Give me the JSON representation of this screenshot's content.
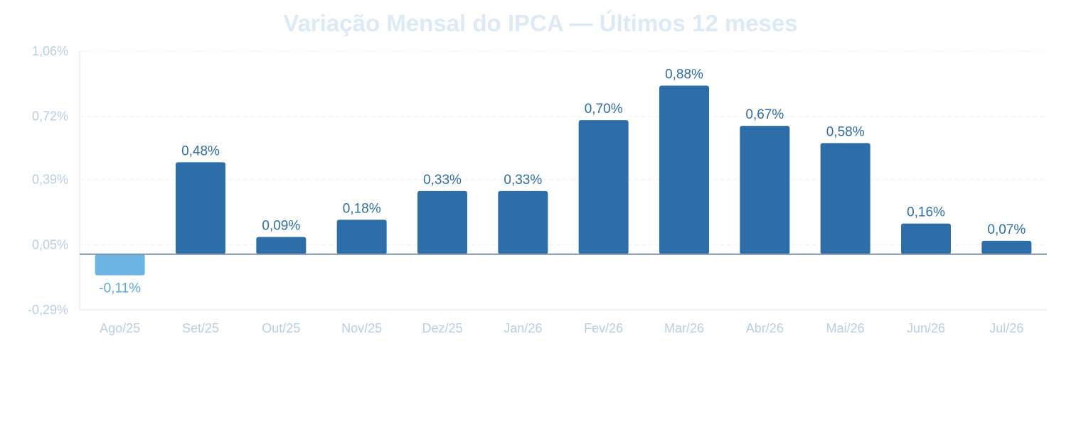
{
  "chart_data": {
    "type": "bar",
    "title": "Variação Mensal do IPCA — Últimos 12 meses",
    "xlabel": "",
    "ylabel": "",
    "categories": [
      "Ago/25",
      "Set/25",
      "Out/25",
      "Nov/25",
      "Dez/25",
      "Jan/26",
      "Fev/26",
      "Mar/26",
      "Abr/26",
      "Mai/26",
      "Jun/26",
      "Jul/26"
    ],
    "series": [
      {
        "values": [
          -0.11,
          0.48,
          0.09,
          0.18,
          0.33,
          0.33,
          0.7,
          0.88,
          0.67,
          0.58,
          0.16,
          0.07
        ]
      }
    ],
    "data_labels": [
      "-0,11%",
      "0,48%",
      "0,09%",
      "0,18%",
      "0,33%",
      "0,33%",
      "0,70%",
      "0,88%",
      "0,67%",
      "0,58%",
      "0,16%",
      "0,07%"
    ],
    "y_ticks": [
      -0.29,
      0.05,
      0.39,
      0.72,
      1.06
    ],
    "y_tick_labels": [
      "-0,29%",
      "0,05%",
      "0,39%",
      "0,72%",
      "1,06%"
    ],
    "ylim": [
      -0.29,
      1.06
    ],
    "grid": true,
    "legend": "none",
    "colors": {
      "positive": "#2e6ea8",
      "negative": "#6cb4e2",
      "positive_label": "#2e6ea8",
      "negative_label": "#5aa8dc",
      "tick_text": "#b9cfe1",
      "category_text": "#b9cfe1",
      "title": "#ddeaf6",
      "grid": "#f0f3f7",
      "zero_line": "#7d93a8",
      "axis": "#e8eef5"
    }
  }
}
